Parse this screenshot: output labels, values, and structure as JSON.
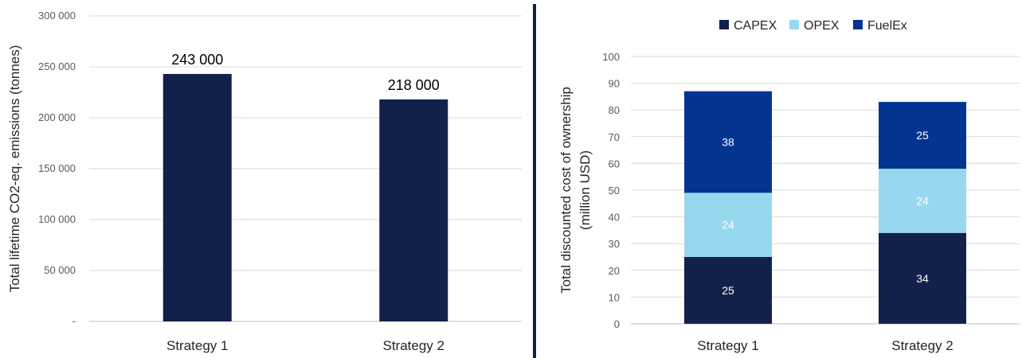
{
  "chart_data": [
    {
      "type": "bar",
      "title": "",
      "xlabel": "",
      "ylabel": "Total lifetime CO2-eq. emissions (tonnes)",
      "ylim": [
        0,
        300000
      ],
      "yticks": [
        0,
        50000,
        100000,
        150000,
        200000,
        250000,
        300000
      ],
      "ytick_labels": [
        "-",
        "50 000",
        "100 000",
        "150 000",
        "200 000",
        "250 000",
        "300 000"
      ],
      "categories": [
        "Strategy 1",
        "Strategy 2"
      ],
      "values": [
        243000,
        218000
      ],
      "data_labels": [
        "243 000",
        "218 000"
      ],
      "grid": true,
      "color": "#12214a"
    },
    {
      "type": "bar",
      "stacked": true,
      "title": "",
      "xlabel": "",
      "ylabel_lines": [
        "Total discounted cost of ownership",
        "(million USD)"
      ],
      "ylim": [
        0,
        100
      ],
      "yticks": [
        0,
        10,
        20,
        30,
        40,
        50,
        60,
        70,
        80,
        90,
        100
      ],
      "categories": [
        "Strategy 1",
        "Strategy 2"
      ],
      "series": [
        {
          "name": "CAPEX",
          "values": [
            25,
            34
          ],
          "color": "#12214a"
        },
        {
          "name": "OPEX",
          "values": [
            24,
            24
          ],
          "color": "#98d8ef"
        },
        {
          "name": "FuelEx",
          "values": [
            38,
            25
          ],
          "color": "#033491"
        }
      ],
      "legend": "top",
      "grid": true
    }
  ],
  "divider_color": "#12214a"
}
